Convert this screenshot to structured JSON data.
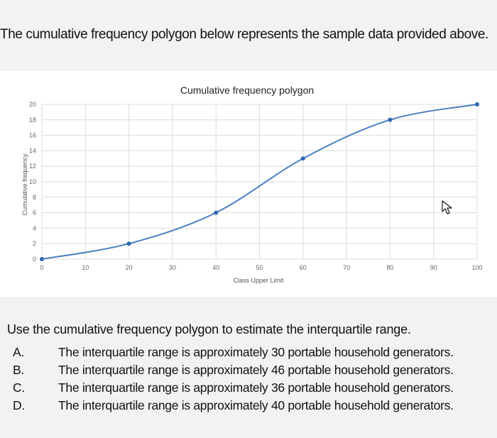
{
  "intro_text": "The cumulative frequency polygon below represents the sample data provided above.",
  "question_text": "Use the cumulative frequency polygon to estimate the interquartile range.",
  "options": [
    {
      "letter": "A.",
      "text": "The interquartile range is approximately 30 portable household generators."
    },
    {
      "letter": "B.",
      "text": "The interquartile range is approximately 46 portable household generators."
    },
    {
      "letter": "C.",
      "text": "The interquartile range is approximately 36 portable household generators."
    },
    {
      "letter": "D.",
      "text": "The interquartile range is approximately 40 portable household generators."
    }
  ],
  "chart_data": {
    "type": "line",
    "title": "Cumulative frequency polygon",
    "xlabel": "Class Upper Limit",
    "ylabel": "Cumulative frequency",
    "x": [
      0,
      20,
      40,
      60,
      80,
      100
    ],
    "y": [
      0,
      2,
      6,
      13,
      18,
      20
    ],
    "xlim": [
      0,
      100
    ],
    "ylim": [
      0,
      20
    ],
    "xticks": [
      "0",
      "10",
      "20",
      "30",
      "40",
      "50",
      "60",
      "70",
      "80",
      "90",
      "100"
    ],
    "yticks": [
      "0",
      "2",
      "4",
      "6",
      "8",
      "10",
      "12",
      "14",
      "16",
      "18",
      "20"
    ],
    "grid": true,
    "line_color": "#4a7fc1",
    "point_color": "#2f67b3"
  },
  "icons": {
    "cursor": "mouse-pointer-icon"
  }
}
